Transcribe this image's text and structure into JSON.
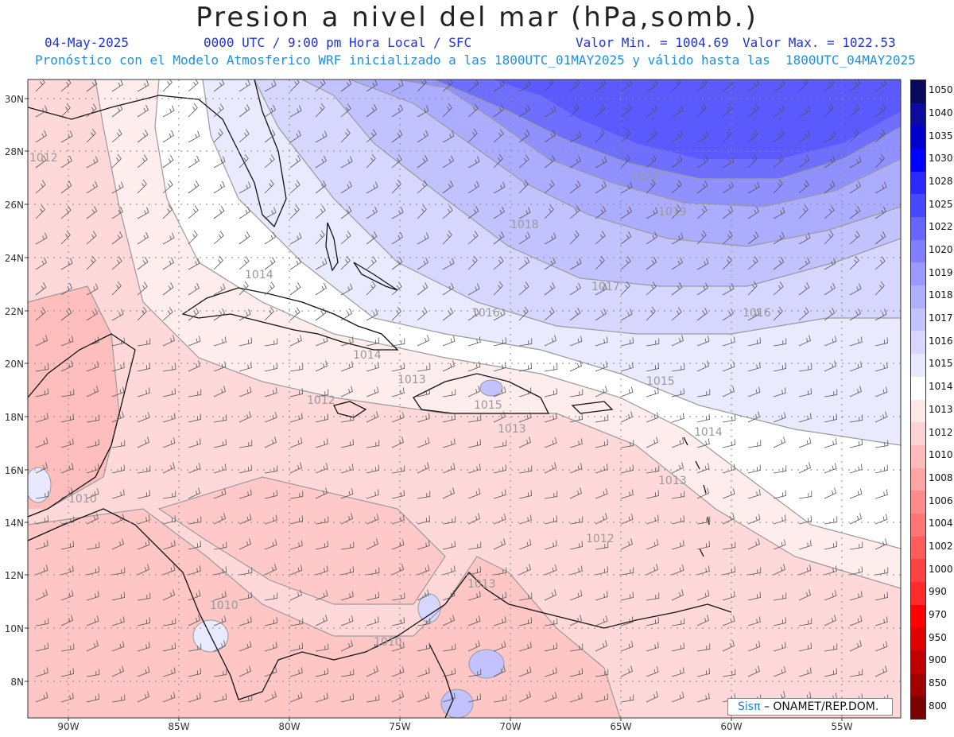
{
  "title": "Presion a nivel del mar (hPa,somb.)",
  "subtitle": {
    "date": "04-May-2025",
    "time": "0000 UTC / 9:00 pm Hora Local / SFC",
    "min": "Valor Min. = 1004.69",
    "max": "Valor Max. = 1022.53"
  },
  "model_line": "Pronóstico con el Modelo Atmosferico WRF inicializado a las 1800UTC_01MAY2025 y válido hasta las  1800UTC_04MAY2025",
  "map": {
    "lat_labels": [
      "30N",
      "28N",
      "26N",
      "24N",
      "22N",
      "20N",
      "18N",
      "16N",
      "14N",
      "12N",
      "10N",
      "8N"
    ],
    "lon_labels": [
      "90W",
      "85W",
      "80W",
      "75W",
      "70W",
      "65W",
      "60W",
      "55W"
    ],
    "contour_labels": [
      "1012",
      "1014",
      "1016",
      "1018",
      "1020",
      "1019",
      "1017",
      "1016",
      "1015",
      "1014",
      "1013",
      "1013",
      "1012",
      "1015",
      "1013",
      "1014",
      "1013",
      "1012",
      "1010",
      "1010",
      "1010"
    ]
  },
  "colorbar": {
    "levels": [
      "1050",
      "1040",
      "1035",
      "1030",
      "1028",
      "1025",
      "1022",
      "1020",
      "1019",
      "1018",
      "1017",
      "1016",
      "1015",
      "1014",
      "1013",
      "1012",
      "1010",
      "1008",
      "1006",
      "1004",
      "1002",
      "1000",
      "990",
      "970",
      "950",
      "900",
      "850",
      "800"
    ],
    "colors": [
      "#0a0a5c",
      "#0b0b9e",
      "#0000cc",
      "#0000ff",
      "#2a2aff",
      "#4848ff",
      "#6666ff",
      "#8080ff",
      "#9999ff",
      "#afafff",
      "#c3c3ff",
      "#d6d6ff",
      "#e8e8ff",
      "#ffffff",
      "#ffe8e8",
      "#ffd2d2",
      "#ffbaba",
      "#ffa4a4",
      "#ff8c8c",
      "#ff7474",
      "#ff5c5c",
      "#ff4242",
      "#ff2a2a",
      "#ff0000",
      "#e00000",
      "#c00000",
      "#a00000",
      "#7a0000"
    ]
  },
  "credit": {
    "brand": "Sisπ",
    "org": "– ONAMET/REP.DOM."
  }
}
